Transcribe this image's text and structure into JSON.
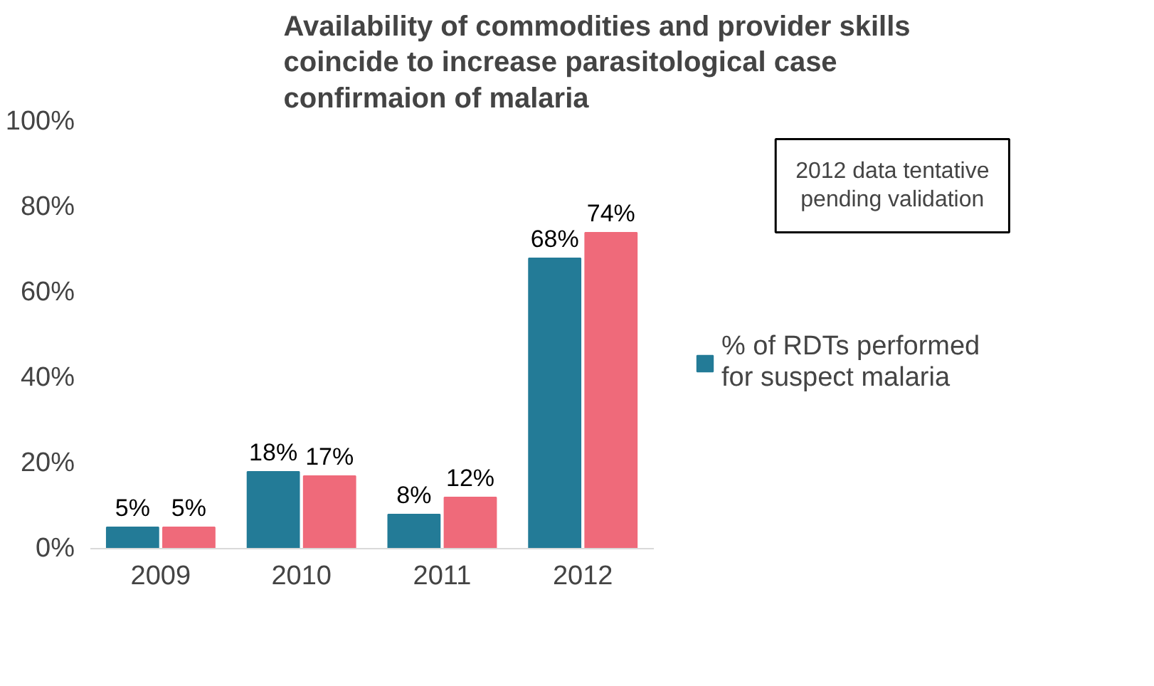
{
  "chart_data": {
    "type": "bar",
    "title": "Availability of commodities and provider skills\ncoincide to increase parasitological case\nconfirmaion of malaria",
    "categories": [
      "2009",
      "2010",
      "2011",
      "2012"
    ],
    "series": [
      {
        "name": "% of RDTs performed\nfor suspect malaria",
        "color": "#237b97",
        "values": [
          5,
          18,
          8,
          68
        ],
        "value_labels": [
          "5%",
          "18%",
          "8%",
          "68%"
        ]
      },
      {
        "color": "#ef6a7a",
        "values": [
          5,
          17,
          12,
          74
        ],
        "value_labels": [
          "5%",
          "17%",
          "12%",
          "74%"
        ]
      }
    ],
    "ylim": [
      0,
      100
    ],
    "yticks": [
      {
        "value": 0,
        "label": "0%"
      },
      {
        "value": 20,
        "label": "20%"
      },
      {
        "value": 40,
        "label": "40%"
      },
      {
        "value": 60,
        "label": "60%"
      },
      {
        "value": 80,
        "label": "80%"
      },
      {
        "value": 100,
        "label": "100%"
      }
    ],
    "annotations": [
      "2012 data tentative\npending validation"
    ],
    "legend": "right",
    "grid": false
  }
}
